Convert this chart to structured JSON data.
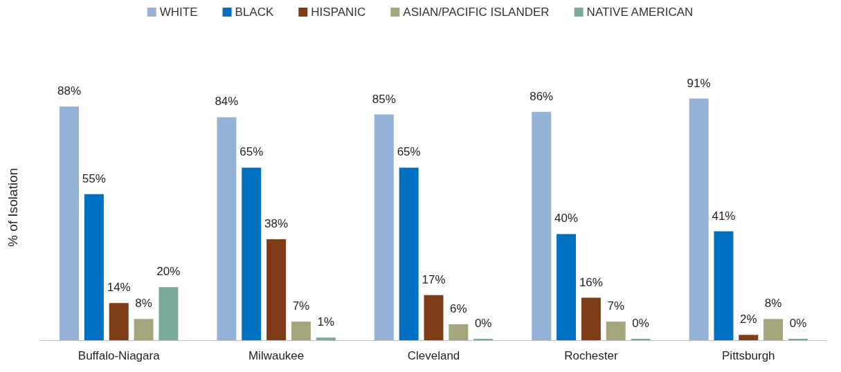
{
  "chart_data": {
    "type": "bar",
    "ylabel": "% of Isolation",
    "categories": [
      "Buffalo-Niagara",
      "Milwaukee",
      "Cleveland",
      "Rochester",
      "Pittsburgh"
    ],
    "legend": "top",
    "grid": false,
    "series": [
      {
        "name": "WHITE",
        "color": "#95b3d7",
        "values": [
          88,
          84,
          85,
          86,
          91
        ],
        "value_labels": [
          "88%",
          "84%",
          "85%",
          "86%",
          "91%"
        ]
      },
      {
        "name": "BLACK",
        "color": "#0070c0",
        "values": [
          55,
          65,
          65,
          40,
          41
        ],
        "value_labels": [
          "55%",
          "65%",
          "65%",
          "40%",
          "41%"
        ]
      },
      {
        "name": "HISPANIC",
        "color": "#7e3c19",
        "values": [
          14,
          38,
          17,
          16,
          2
        ],
        "value_labels": [
          "14%",
          "38%",
          "17%",
          "16%",
          "2%"
        ]
      },
      {
        "name": "ASIAN/PACIFIC ISLANDER",
        "color": "#a6a67c",
        "values": [
          8,
          7,
          6,
          7,
          8
        ],
        "value_labels": [
          "8%",
          "7%",
          "6%",
          "7%",
          "8%"
        ]
      },
      {
        "name": "NATIVE AMERICAN",
        "color": "#7ba99a",
        "values": [
          20,
          1,
          0,
          0,
          0
        ],
        "value_labels": [
          "20%",
          "1%",
          "0%",
          "0%",
          "0%"
        ]
      }
    ]
  }
}
